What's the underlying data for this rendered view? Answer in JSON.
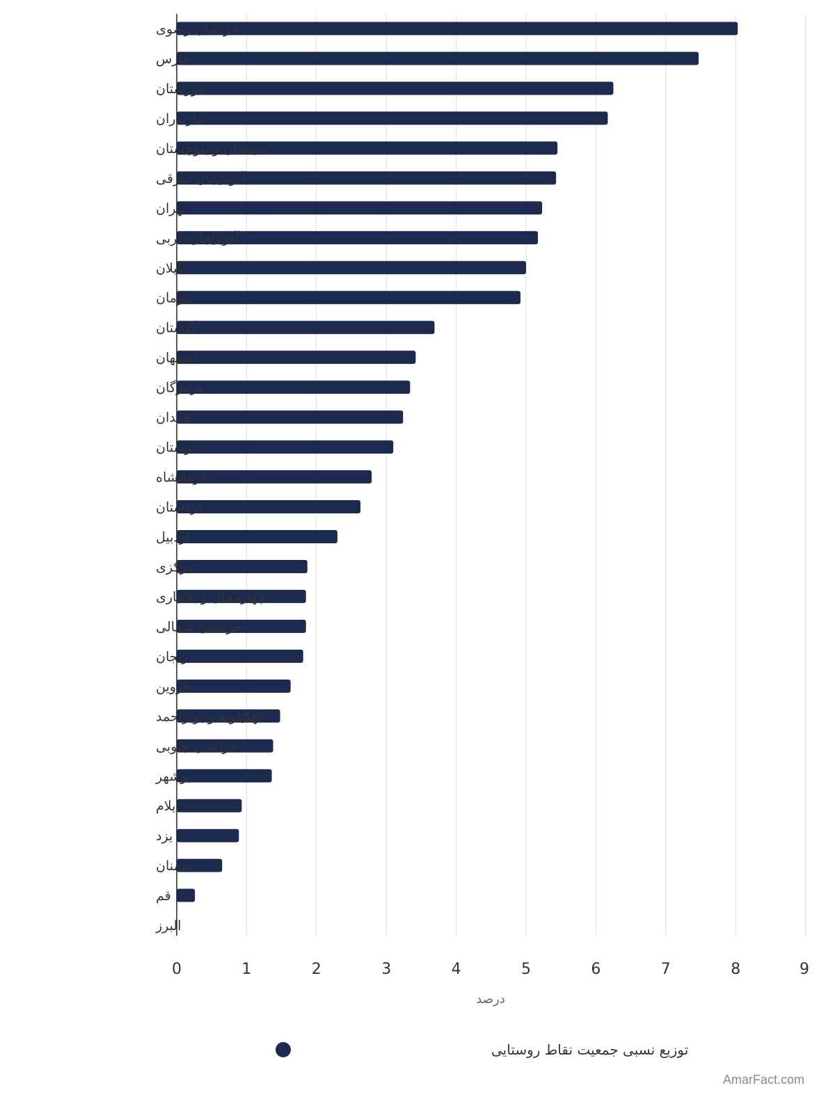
{
  "chart_data": {
    "type": "bar",
    "orientation": "horizontal",
    "categories": [
      "خراسان رضوی",
      "فارس",
      "خوزستان",
      "مازندران",
      "سیستان و بلوچستان",
      "آذربایجان شرقی",
      "تهران",
      "آذربایجان غربی",
      "گیلان",
      "کرمان",
      "گلستان",
      "اصفهان",
      "هرمزگان",
      "همدان",
      "لرستان",
      "کرمانشاه",
      "کردستان",
      "اردبیل",
      "مرکزی",
      "چهارمحال و بختیاری",
      "خراسان شمالی",
      "زنجان",
      "قزوین",
      "کهگیلویه و بویراحمد",
      "خراسان جنوبی",
      "بوشهر",
      "ایلام",
      "یزد",
      "سمنان",
      "قم",
      "البرز"
    ],
    "series": [
      {
        "name": "توزیع نسبی جمعیت نقاط روستایی",
        "color": "#1b2a4e",
        "values": [
          8.03,
          7.47,
          6.25,
          6.17,
          5.45,
          5.43,
          5.23,
          5.17,
          5.0,
          4.92,
          3.69,
          3.42,
          3.34,
          3.24,
          3.1,
          2.79,
          2.63,
          2.3,
          1.87,
          1.85,
          1.85,
          1.81,
          1.63,
          1.48,
          1.38,
          1.36,
          0.93,
          0.89,
          0.65,
          0.26,
          0
        ]
      }
    ],
    "xlabel": "درصد",
    "xlim": [
      0,
      9
    ],
    "xticks": [
      "0",
      "1",
      "2",
      "3",
      "4",
      "5",
      "6",
      "7",
      "8",
      "9"
    ],
    "grid": "vertical",
    "legend_position": "bottom"
  },
  "watermark": "AmarFact.com"
}
